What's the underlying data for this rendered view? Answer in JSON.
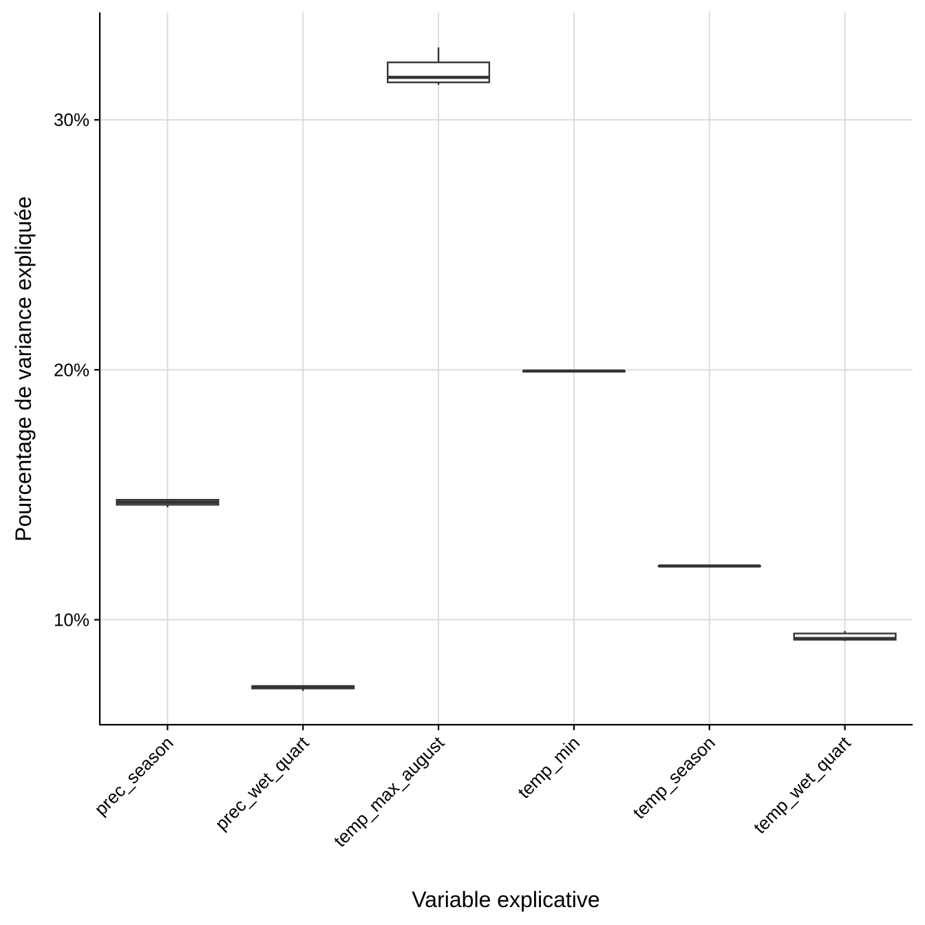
{
  "chart_data": {
    "type": "boxplot",
    "title": "",
    "xlabel": "Variable explicative",
    "ylabel": "Pourcentage de variance expliquée",
    "ylim": [
      5.8,
      34.3
    ],
    "yticks": [
      10,
      20,
      30
    ],
    "ytick_labels": [
      "10%",
      "20%",
      "30%"
    ],
    "grid": true,
    "categories": [
      "prec_season",
      "prec_wet_quart",
      "temp_max_august",
      "temp_min",
      "temp_season",
      "temp_wet_quart"
    ],
    "boxes": [
      {
        "name": "prec_season",
        "min": 14.5,
        "q1": 14.6,
        "median": 14.7,
        "q3": 14.8,
        "max": 14.8
      },
      {
        "name": "prec_wet_quart",
        "min": 7.15,
        "q1": 7.25,
        "median": 7.28,
        "q3": 7.35,
        "max": 7.35
      },
      {
        "name": "temp_max_august",
        "min": 31.4,
        "q1": 31.5,
        "median": 31.7,
        "q3": 32.3,
        "max": 32.9
      },
      {
        "name": "temp_min",
        "min": 19.95,
        "q1": 19.95,
        "median": 19.95,
        "q3": 19.95,
        "max": 19.95
      },
      {
        "name": "temp_season",
        "min": 12.15,
        "q1": 12.15,
        "median": 12.15,
        "q3": 12.15,
        "max": 12.15
      },
      {
        "name": "temp_wet_quart",
        "min": 9.15,
        "q1": 9.2,
        "median": 9.25,
        "q3": 9.45,
        "max": 9.55
      }
    ],
    "colors": {
      "box_stroke": "#333333",
      "box_fill": "#ffffff",
      "grid": "#dcdcdc",
      "axis": "#000000"
    }
  }
}
